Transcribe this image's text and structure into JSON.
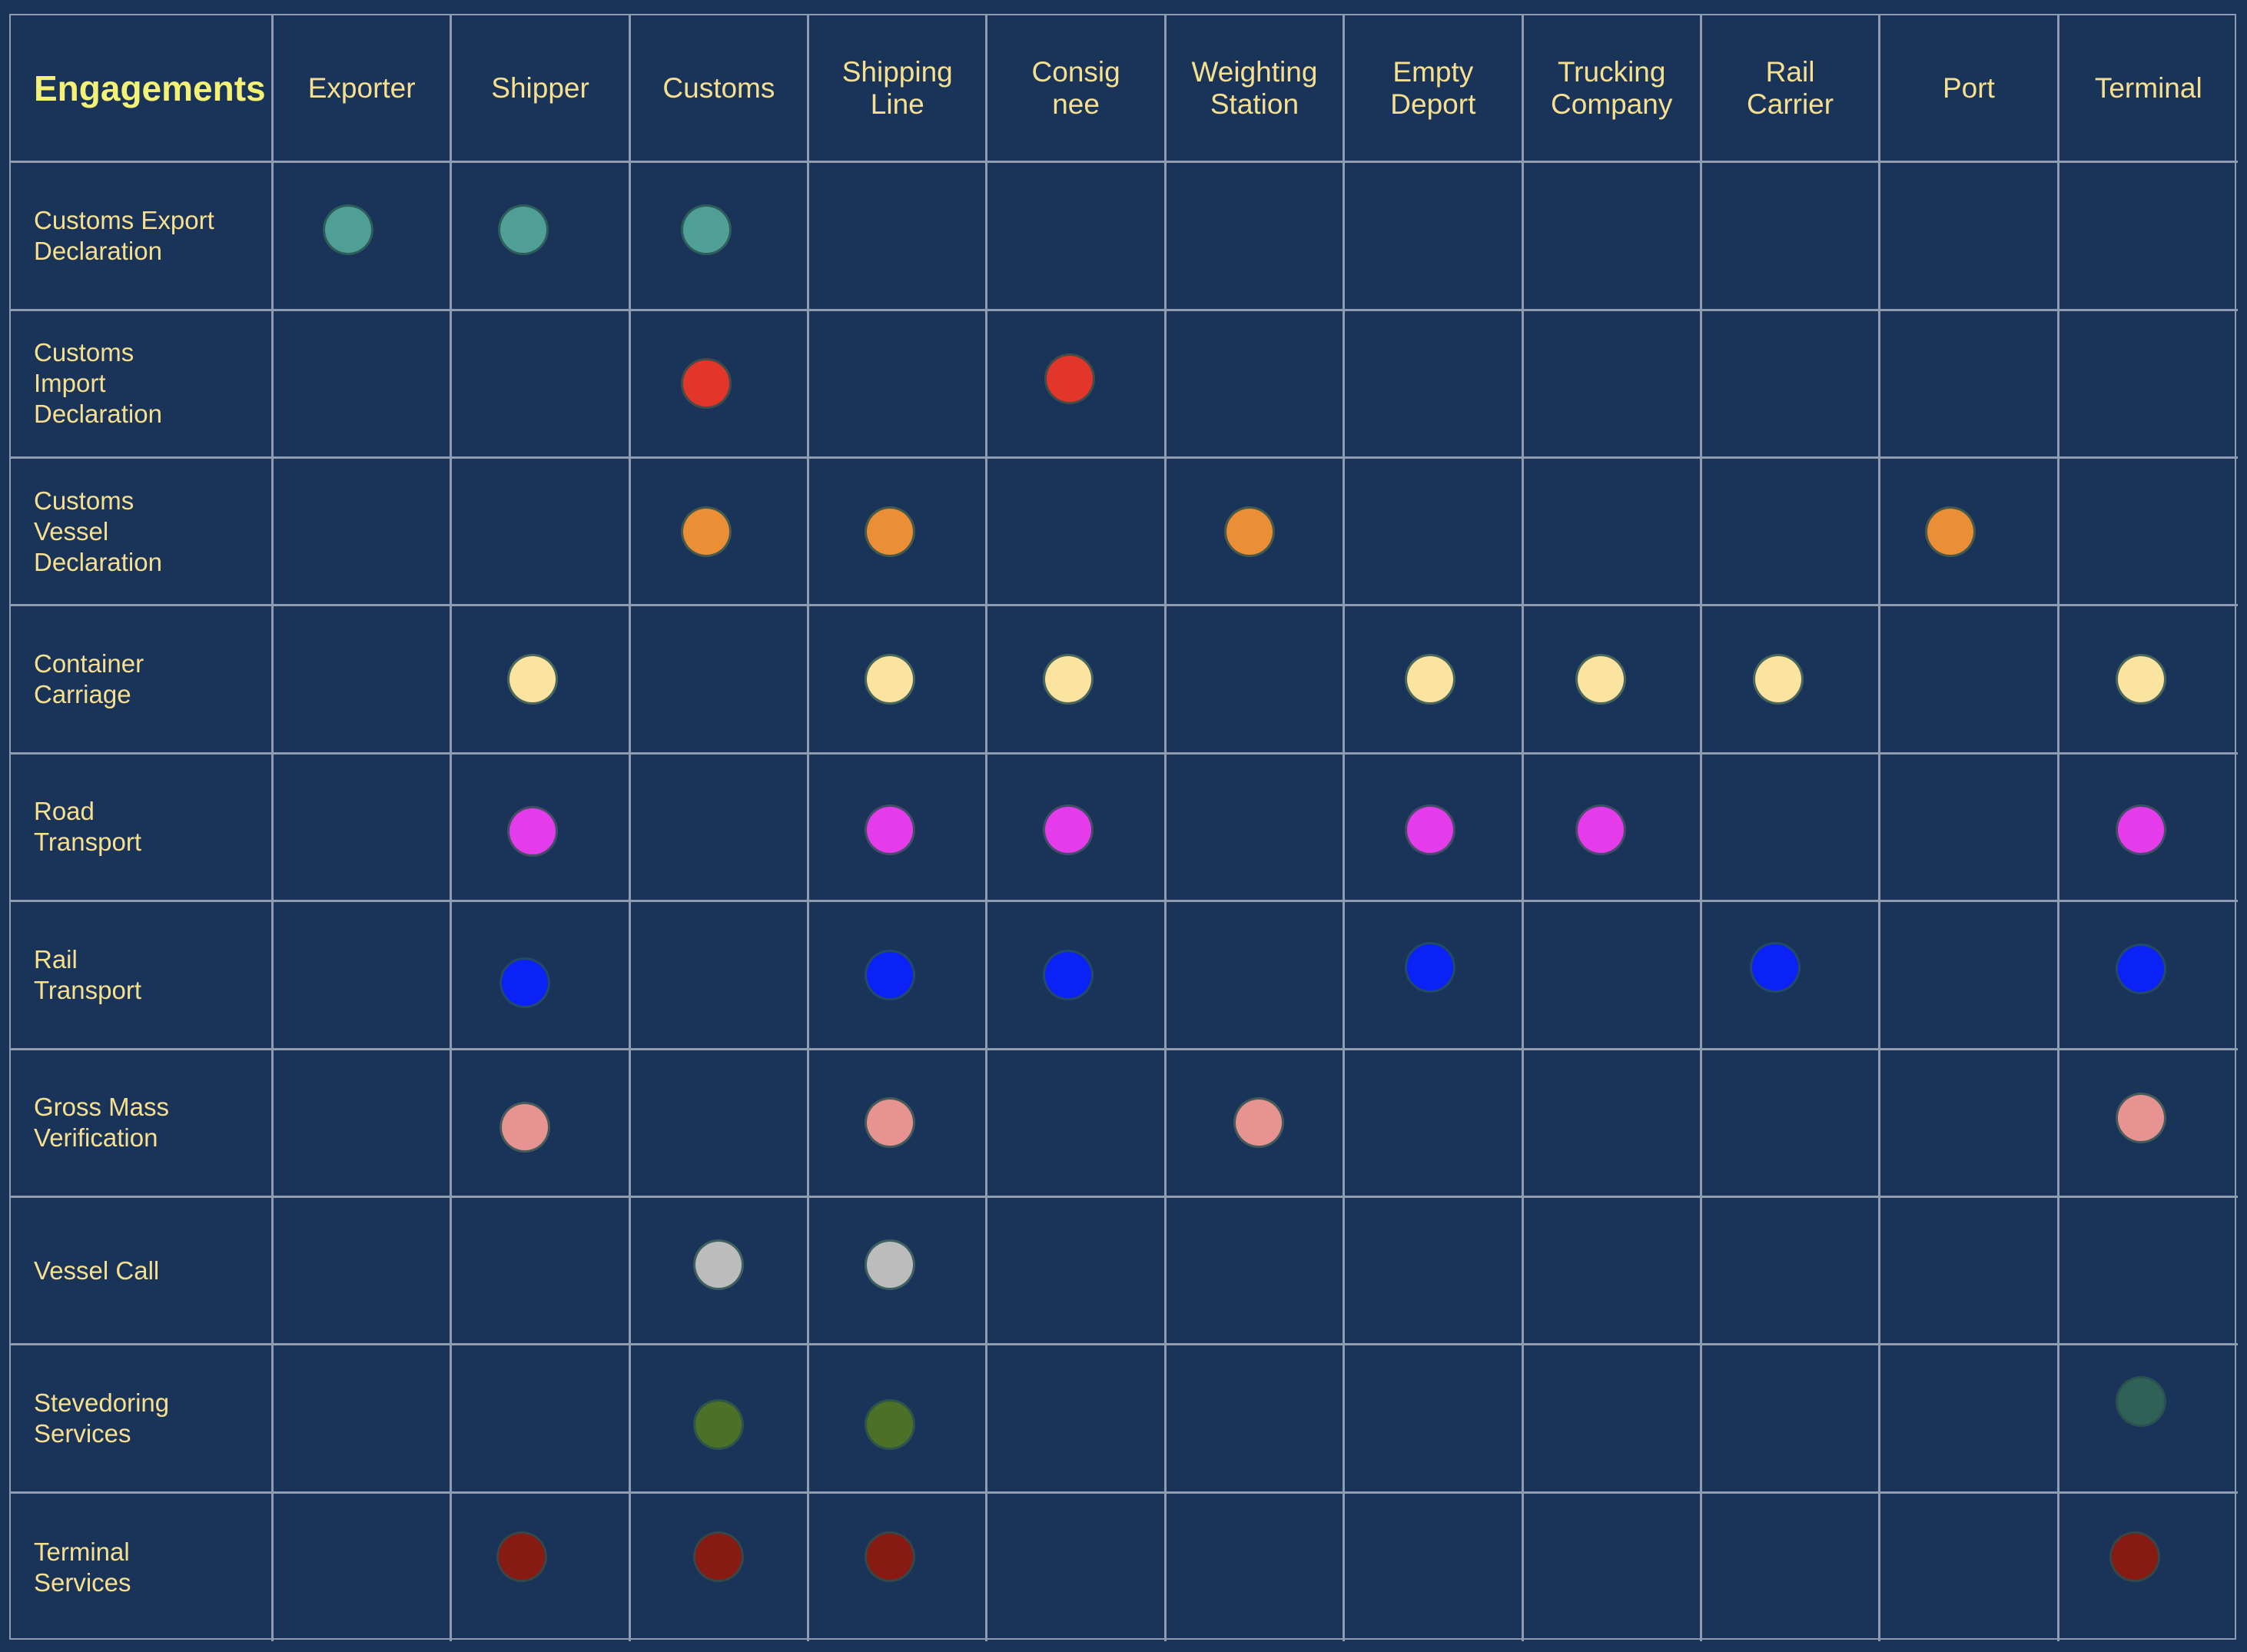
{
  "table": {
    "corner_label": "Engagements",
    "columns": [
      "Exporter",
      "Shipper",
      "Customs",
      "Shipping\nLine",
      "Consig\nnee",
      "Weighting\nStation",
      "Empty\nDeport",
      "Trucking\nCompany",
      "Rail\nCarrier",
      "Port",
      "Terminal"
    ],
    "rows": [
      {
        "label": "Customs Export\nDeclaration",
        "color": "#4f9f97",
        "engaged": [
          true,
          true,
          true,
          false,
          false,
          false,
          false,
          false,
          false,
          false,
          false
        ]
      },
      {
        "label": "Customs\nImport\nDeclaration",
        "color": "#e3362b",
        "engaged": [
          false,
          false,
          true,
          false,
          true,
          false,
          false,
          false,
          false,
          false,
          false
        ]
      },
      {
        "label": "Customs\nVessel\nDeclaration",
        "color": "#ea8f36",
        "engaged": [
          false,
          false,
          true,
          true,
          false,
          true,
          false,
          false,
          false,
          true,
          false
        ]
      },
      {
        "label": "Container\nCarriage",
        "color": "#fbe3a0",
        "engaged": [
          false,
          true,
          false,
          true,
          true,
          false,
          true,
          true,
          true,
          false,
          true
        ]
      },
      {
        "label": "Road\nTransport",
        "color": "#e43ceb",
        "engaged": [
          false,
          true,
          false,
          true,
          true,
          false,
          true,
          true,
          false,
          false,
          true
        ]
      },
      {
        "label": "Rail\nTransport",
        "color": "#0a22f5",
        "engaged": [
          false,
          true,
          false,
          true,
          true,
          false,
          true,
          false,
          true,
          false,
          true
        ]
      },
      {
        "label": "Gross Mass\nVerification",
        "color": "#e79392",
        "engaged": [
          false,
          true,
          false,
          true,
          false,
          true,
          false,
          false,
          false,
          false,
          true
        ]
      },
      {
        "label": "Vessel Call",
        "color": "#bcbcbc",
        "engaged": [
          false,
          false,
          true,
          true,
          false,
          false,
          false,
          false,
          false,
          false,
          false
        ]
      },
      {
        "label": "Stevedoring\nServices",
        "color": "#4d7028",
        "engaged": [
          false,
          false,
          true,
          true,
          false,
          false,
          false,
          false,
          false,
          false,
          true
        ],
        "alt_colors": {
          "10": "#2f6157"
        }
      },
      {
        "label": "Terminal\nServices",
        "color": "#881a14",
        "engaged": [
          false,
          true,
          true,
          true,
          false,
          false,
          false,
          false,
          false,
          false,
          true
        ]
      }
    ]
  }
}
